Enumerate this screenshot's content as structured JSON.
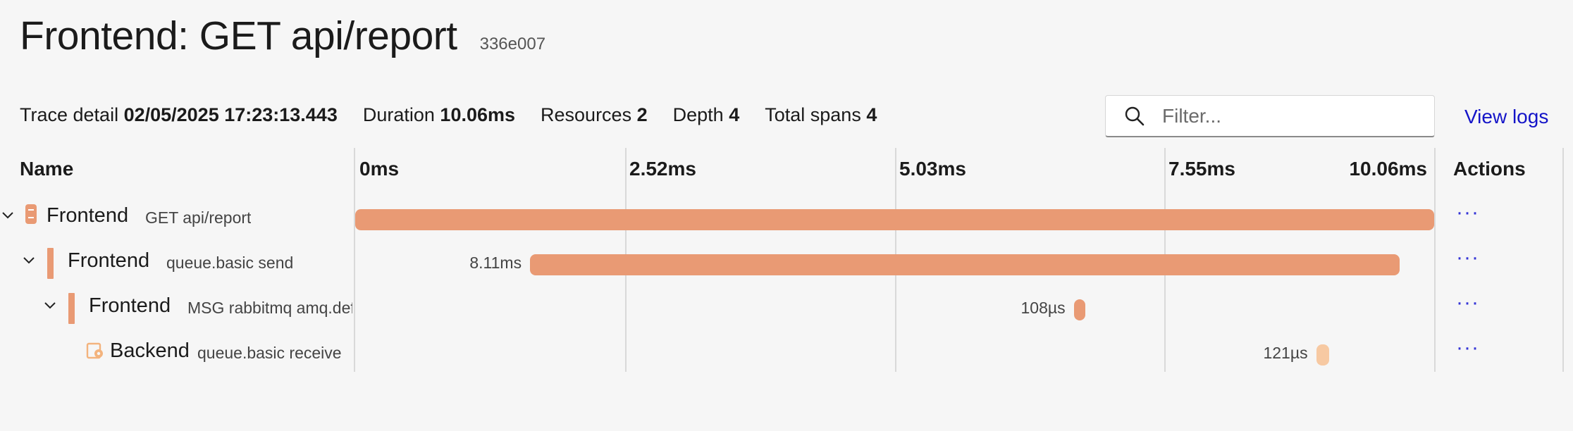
{
  "header": {
    "title": "Frontend: GET api/report",
    "trace_id": "336e007"
  },
  "summary": {
    "trace_detail_label": "Trace detail",
    "trace_detail_value": "02/05/2025 17:23:13.443",
    "duration_label": "Duration",
    "duration_value": "10.06ms",
    "resources_label": "Resources",
    "resources_value": "2",
    "depth_label": "Depth",
    "depth_value": "4",
    "total_spans_label": "Total spans",
    "total_spans_value": "4"
  },
  "filter": {
    "placeholder": "Filter..."
  },
  "view_logs_label": "View logs",
  "columns": {
    "name": "Name",
    "ticks": [
      "0ms",
      "2.52ms",
      "5.03ms",
      "7.55ms",
      "10.06ms"
    ],
    "actions": "Actions"
  },
  "total_duration_ms": 10.06,
  "spans": [
    {
      "service": "Frontend",
      "operation": "GET api/report",
      "start_ms": 0,
      "duration_ms": 10.06,
      "duration_label": "",
      "color": "#e99a74",
      "icon": "server-icon",
      "depth": 0,
      "actions": "···"
    },
    {
      "service": "Frontend",
      "operation": "queue.basic send",
      "start_ms": 1.63,
      "duration_ms": 8.11,
      "duration_label": "8.11ms",
      "color": "#e99a74",
      "icon": "span-marker",
      "depth": 1,
      "actions": "···"
    },
    {
      "service": "Frontend",
      "operation": "MSG rabbitmq amq.def",
      "start_ms": 6.7,
      "duration_ms": 0.108,
      "duration_label": "108µs",
      "color": "#e99a74",
      "icon": "span-marker",
      "depth": 2,
      "actions": "···"
    },
    {
      "service": "Backend",
      "operation": "queue.basic receive",
      "start_ms": 8.96,
      "duration_ms": 0.121,
      "duration_label": "121µs",
      "color": "#f7c9a2",
      "icon": "project-icon",
      "depth": 3,
      "actions": "···"
    }
  ]
}
